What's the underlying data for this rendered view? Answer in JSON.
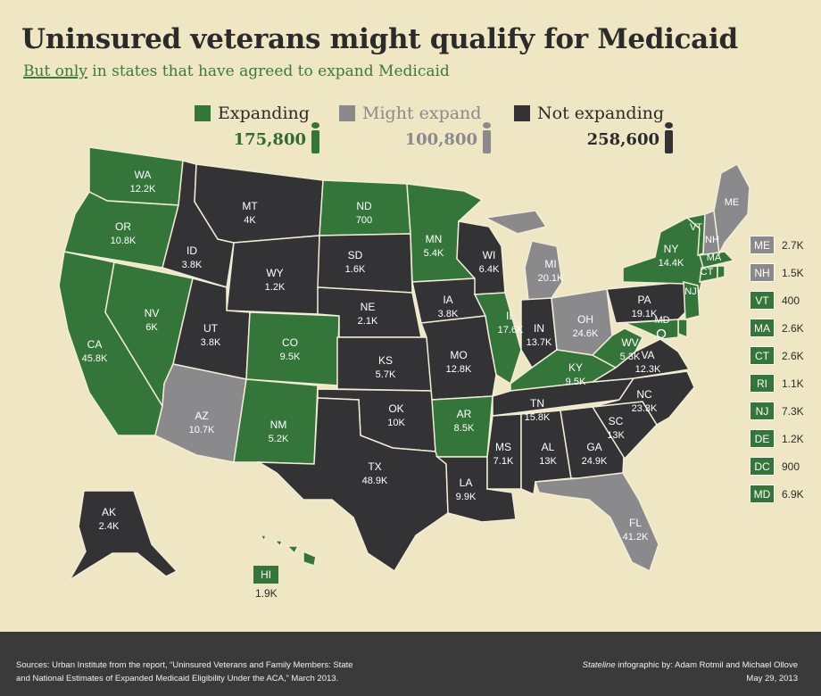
{
  "header": {
    "title": "Uninsured veterans might qualify for Medicaid",
    "subtitle_underlined": "But only",
    "subtitle_rest": " in states that have agreed to expand Medicaid"
  },
  "legend": [
    {
      "label": "Expanding",
      "total": "175,800",
      "color": "#34753a"
    },
    {
      "label": "Might expand",
      "total": "100,800",
      "color": "#8a8a8c"
    },
    {
      "label": "Not expanding",
      "total": "258,600",
      "color": "#333335"
    }
  ],
  "states": {
    "WA": {
      "status": "expanding",
      "value": "12.2K"
    },
    "OR": {
      "status": "expanding",
      "value": "10.8K"
    },
    "CA": {
      "status": "expanding",
      "value": "45.8K"
    },
    "NV": {
      "status": "expanding",
      "value": "6K"
    },
    "ID": {
      "status": "not",
      "value": "3.8K"
    },
    "MT": {
      "status": "not",
      "value": "4K"
    },
    "WY": {
      "status": "not",
      "value": "1.2K"
    },
    "UT": {
      "status": "not",
      "value": "3.8K"
    },
    "AZ": {
      "status": "might",
      "value": "10.7K"
    },
    "CO": {
      "status": "expanding",
      "value": "9.5K"
    },
    "NM": {
      "status": "expanding",
      "value": "5.2K"
    },
    "ND": {
      "status": "expanding",
      "value": "700"
    },
    "SD": {
      "status": "not",
      "value": "1.6K"
    },
    "NE": {
      "status": "not",
      "value": "2.1K"
    },
    "KS": {
      "status": "not",
      "value": "5.7K"
    },
    "OK": {
      "status": "not",
      "value": "10K"
    },
    "TX": {
      "status": "not",
      "value": "48.9K"
    },
    "MN": {
      "status": "expanding",
      "value": "5.4K"
    },
    "IA": {
      "status": "not",
      "value": "3.8K"
    },
    "MO": {
      "status": "not",
      "value": "12.8K"
    },
    "AR": {
      "status": "expanding",
      "value": "8.5K"
    },
    "LA": {
      "status": "not",
      "value": "9.9K"
    },
    "WI": {
      "status": "not",
      "value": "6.4K"
    },
    "IL": {
      "status": "expanding",
      "value": "17.6K"
    },
    "MI": {
      "status": "might",
      "value": "20.1K"
    },
    "IN": {
      "status": "not",
      "value": "13.7K"
    },
    "OH": {
      "status": "might",
      "value": "24.6K"
    },
    "KY": {
      "status": "expanding",
      "value": "9.5K"
    },
    "TN": {
      "status": "not",
      "value": "15.8K"
    },
    "MS": {
      "status": "not",
      "value": "7.1K"
    },
    "AL": {
      "status": "not",
      "value": "13K"
    },
    "GA": {
      "status": "not",
      "value": "24.9K"
    },
    "FL": {
      "status": "might",
      "value": "41.2K"
    },
    "SC": {
      "status": "not",
      "value": "13K"
    },
    "NC": {
      "status": "not",
      "value": "23.3K"
    },
    "VA": {
      "status": "not",
      "value": "12.3K"
    },
    "WV": {
      "status": "expanding",
      "value": "5.3K"
    },
    "PA": {
      "status": "not",
      "value": "19.1K"
    },
    "NY": {
      "status": "expanding",
      "value": "14.4K"
    },
    "AK": {
      "status": "not",
      "value": "2.4K"
    },
    "HI": {
      "status": "expanding",
      "value": "1.9K"
    }
  },
  "small_labels": [
    "ME",
    "VT",
    "NH",
    "MA",
    "CT",
    "NJ",
    "MD"
  ],
  "sidebar": [
    {
      "abbr": "ME",
      "status": "might",
      "value": "2.7K"
    },
    {
      "abbr": "NH",
      "status": "might",
      "value": "1.5K"
    },
    {
      "abbr": "VT",
      "status": "expanding",
      "value": "400"
    },
    {
      "abbr": "MA",
      "status": "expanding",
      "value": "2.6K"
    },
    {
      "abbr": "CT",
      "status": "expanding",
      "value": "2.6K"
    },
    {
      "abbr": "RI",
      "status": "expanding",
      "value": "1.1K"
    },
    {
      "abbr": "NJ",
      "status": "expanding",
      "value": "7.3K"
    },
    {
      "abbr": "DE",
      "status": "expanding",
      "value": "1.2K"
    },
    {
      "abbr": "DC",
      "status": "expanding",
      "value": "900"
    },
    {
      "abbr": "MD",
      "status": "expanding",
      "value": "6.9K"
    }
  ],
  "footer": {
    "sources_line1": "Sources: Urban Institute from the report, “Uninsured Veterans and Family Members: State",
    "sources_line2": "and National Estimates of Expanded Medicaid Eligibility Under the ACA,” March 2013.",
    "credit_italic": "Stateline",
    "credit_rest": " infographic by: Adam Rotmil and Michael Ollove",
    "date": "May 29, 2013"
  }
}
